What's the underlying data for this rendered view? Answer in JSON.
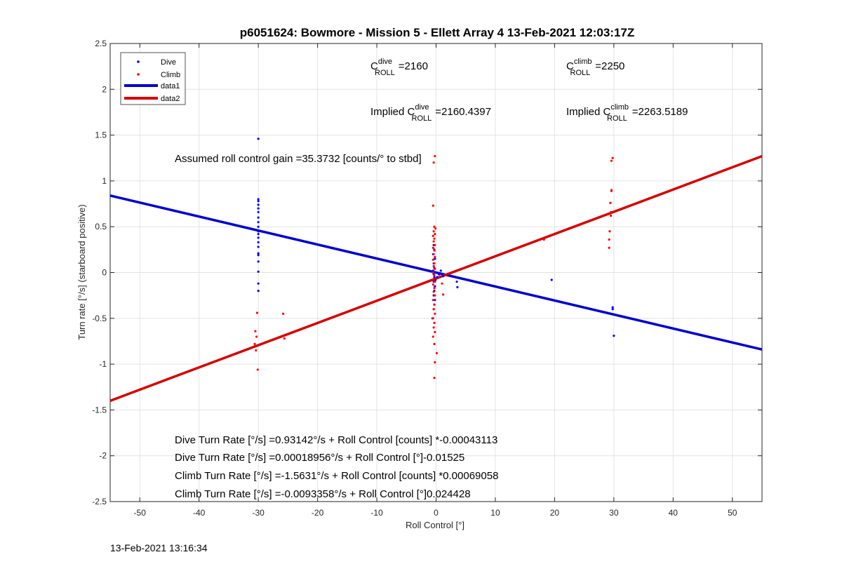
{
  "chart_data": {
    "type": "scatter",
    "title": "p6051624: Bowmore - Mission 5 - Ellett Array 4 13-Feb-2021 12:03:17Z",
    "xlabel": "Roll Control [°]",
    "ylabel": "Turn rate [°/s] (starboard positive)",
    "xlim": [
      -55,
      55
    ],
    "ylim": [
      -2.5,
      2.5
    ],
    "xticks": [
      -50,
      -40,
      -30,
      -20,
      -10,
      0,
      10,
      20,
      30,
      40,
      50
    ],
    "yticks": [
      -2.5,
      -2,
      -1.5,
      -1,
      -0.5,
      0,
      0.5,
      1,
      1.5,
      2,
      2.5
    ],
    "grid": true,
    "legend_position": "top-left",
    "colors": {
      "dive": "#0000ff",
      "climb": "#ff0000",
      "data1": "#0000cc",
      "data2": "#d40000"
    },
    "series": [
      {
        "name": "Dive",
        "kind": "points",
        "points": [
          [
            -30,
            1.46
          ],
          [
            -30,
            0.8
          ],
          [
            -30,
            0.78
          ],
          [
            -30,
            0.74
          ],
          [
            -30,
            0.7
          ],
          [
            -30,
            0.66
          ],
          [
            -30,
            0.6
          ],
          [
            -30,
            0.55
          ],
          [
            -30,
            0.5
          ],
          [
            -30,
            0.45
          ],
          [
            -30,
            0.42
          ],
          [
            -30,
            0.38
          ],
          [
            -30,
            0.33
          ],
          [
            -30,
            0.28
          ],
          [
            -30,
            0.21
          ],
          [
            -30,
            0.19
          ],
          [
            -30,
            0.12
          ],
          [
            -30,
            0.01
          ],
          [
            -30,
            -0.12
          ],
          [
            -30,
            -0.2
          ],
          [
            -0.4,
            0.3
          ],
          [
            -0.3,
            0.25
          ],
          [
            -0.5,
            0.2
          ],
          [
            -0.2,
            0.15
          ],
          [
            -0.4,
            0.1
          ],
          [
            -0.3,
            0.05
          ],
          [
            -0.5,
            0.02
          ],
          [
            -0.2,
            0.0
          ],
          [
            -0.4,
            -0.02
          ],
          [
            -0.3,
            -0.05
          ],
          [
            -0.1,
            -0.08
          ],
          [
            -0.4,
            -0.1
          ],
          [
            -0.2,
            -0.15
          ],
          [
            -0.3,
            -0.2
          ],
          [
            -0.4,
            -0.25
          ],
          [
            -0.2,
            -0.3
          ],
          [
            -0.3,
            -0.35
          ],
          [
            -0.4,
            -0.4
          ],
          [
            -0.6,
            -0.5
          ],
          [
            0.2,
            -0.05
          ],
          [
            0.5,
            -0.02
          ],
          [
            0.8,
            0.02
          ],
          [
            1.2,
            -0.04
          ],
          [
            3.5,
            -0.1
          ],
          [
            3.6,
            -0.16
          ],
          [
            19.5,
            -0.08
          ],
          [
            29.8,
            -0.38
          ],
          [
            29.8,
            -0.4
          ],
          [
            30.0,
            -0.69
          ]
        ]
      },
      {
        "name": "Climb",
        "kind": "points",
        "points": [
          [
            -0.2,
            1.27
          ],
          [
            -0.4,
            1.2
          ],
          [
            -0.5,
            0.73
          ],
          [
            -0.3,
            0.5
          ],
          [
            -0.1,
            0.48
          ],
          [
            -0.4,
            0.45
          ],
          [
            -0.2,
            0.42
          ],
          [
            -0.5,
            0.4
          ],
          [
            -0.3,
            0.37
          ],
          [
            -0.4,
            0.34
          ],
          [
            -0.2,
            0.3
          ],
          [
            -0.5,
            0.27
          ],
          [
            -0.3,
            0.24
          ],
          [
            -0.4,
            0.2
          ],
          [
            -0.2,
            0.17
          ],
          [
            -0.5,
            0.14
          ],
          [
            -0.3,
            0.1
          ],
          [
            -0.4,
            0.07
          ],
          [
            -0.2,
            0.04
          ],
          [
            -0.5,
            0.0
          ],
          [
            -0.3,
            -0.03
          ],
          [
            -0.4,
            -0.07
          ],
          [
            -0.2,
            -0.1
          ],
          [
            -0.5,
            -0.13
          ],
          [
            -0.3,
            -0.17
          ],
          [
            -0.4,
            -0.21
          ],
          [
            -0.2,
            -0.25
          ],
          [
            -0.5,
            -0.3
          ],
          [
            -0.3,
            -0.35
          ],
          [
            -0.4,
            -0.4
          ],
          [
            -0.2,
            -0.45
          ],
          [
            -0.5,
            -0.5
          ],
          [
            -0.3,
            -0.55
          ],
          [
            -0.4,
            -0.6
          ],
          [
            -0.2,
            -0.65
          ],
          [
            -0.5,
            -0.7
          ],
          [
            -0.3,
            -0.78
          ],
          [
            0.1,
            -0.88
          ],
          [
            -0.2,
            -0.98
          ],
          [
            -0.3,
            -1.15
          ],
          [
            1.0,
            -0.12
          ],
          [
            1.2,
            -0.24
          ],
          [
            -30.2,
            -0.44
          ],
          [
            -30.5,
            -0.64
          ],
          [
            -30.3,
            -0.7
          ],
          [
            -30.6,
            -0.78
          ],
          [
            -30.4,
            -0.85
          ],
          [
            -30.1,
            -1.06
          ],
          [
            -25.8,
            -0.45
          ],
          [
            -25.6,
            -0.72
          ],
          [
            18.2,
            0.36
          ],
          [
            29.2,
            0.27
          ],
          [
            29.2,
            0.36
          ],
          [
            29.3,
            0.45
          ],
          [
            29.5,
            0.62
          ],
          [
            29.5,
            0.66
          ],
          [
            29.4,
            0.76
          ],
          [
            29.6,
            0.89
          ],
          [
            29.6,
            0.9
          ],
          [
            29.6,
            1.22
          ],
          [
            29.8,
            1.25
          ]
        ]
      },
      {
        "name": "data1",
        "kind": "line",
        "points": [
          [
            -55,
            0.84
          ],
          [
            55,
            -0.84
          ]
        ]
      },
      {
        "name": "data2",
        "kind": "line",
        "points": [
          [
            -55,
            -1.4
          ],
          [
            55,
            1.27
          ]
        ]
      }
    ],
    "annotations": {
      "c_dive_label": "C",
      "c_dive_sup": "dive",
      "c_dive_sub": "ROLL",
      "c_dive_value": "=2160",
      "c_climb_label": "C",
      "c_climb_sup": "climb",
      "c_climb_sub": "ROLL",
      "c_climb_value": "=2250",
      "implied_dive_prefix": "Implied C",
      "implied_dive_sup": "dive",
      "implied_dive_sub": "ROLL",
      "implied_dive_value": "=2160.4397",
      "implied_climb_prefix": "Implied C",
      "implied_climb_sup": "climb",
      "implied_climb_sub": "ROLL",
      "implied_climb_value": "=2263.5189",
      "gain": "Assumed roll control gain =35.3732 [counts/° to stbd]",
      "eq1": "Dive Turn Rate [°/s] =0.93142°/s + Roll Control [counts] *-0.00043113",
      "eq2": "Dive Turn Rate [°/s] =0.00018956°/s + Roll Control [°]-0.01525",
      "eq3": "Climb Turn Rate [°/s] =-1.5631°/s + Roll Control [counts] *0.00069058",
      "eq4": "Climb Turn Rate [°/s] =-0.0093358°/s + Roll Control [°]0.024428"
    }
  },
  "timestamp": "13-Feb-2021 13:16:34"
}
